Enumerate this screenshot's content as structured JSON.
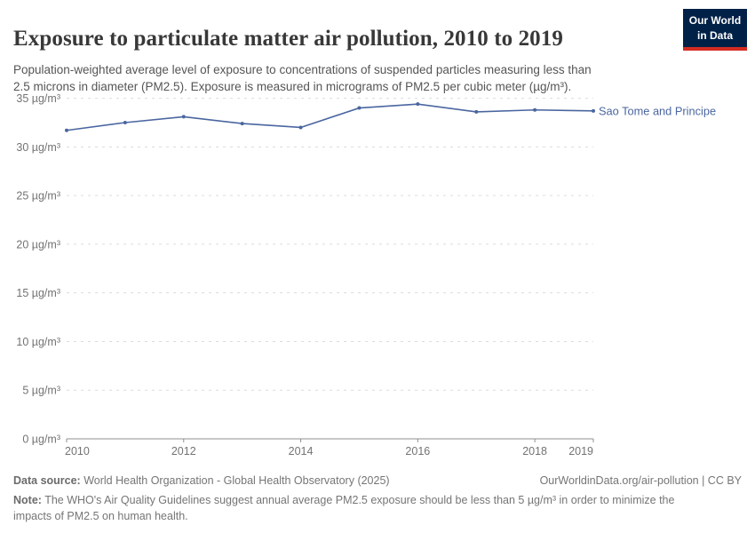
{
  "header": {
    "title": "Exposure to particulate matter air pollution, 2010 to 2019",
    "subtitle_line1": "Population-weighted average level of exposure to concentrations of suspended particles measuring less than",
    "subtitle_line2": "2.5 microns in diameter (PM2.5). Exposure is measured in micrograms of PM2.5 per cubic meter (µg/m³).",
    "logo": {
      "line1": "Our World",
      "line2": "in Data",
      "bg_color": "#002147",
      "bar_color": "#D42B21"
    }
  },
  "chart_data": {
    "type": "line",
    "title": "Exposure to particulate matter air pollution, 2010 to 2019",
    "series": [
      {
        "name": "Sao Tome and Principe",
        "color": "#4A66A0",
        "x": [
          2010,
          2011,
          2012,
          2013,
          2014,
          2015,
          2016,
          2017,
          2018,
          2019
        ],
        "values": [
          31.7,
          32.5,
          33.1,
          32.4,
          32.0,
          34.0,
          34.4,
          33.6,
          33.8,
          33.7
        ]
      }
    ],
    "xlim": [
      2010,
      2019
    ],
    "ylim": [
      0,
      35
    ],
    "xticks": [
      2010,
      2012,
      2014,
      2016,
      2018,
      2019
    ],
    "yticks": [
      0,
      5,
      10,
      15,
      20,
      25,
      30,
      35
    ],
    "y_unit": "µg/m³",
    "grid": "horizontal-dashed",
    "legend": "end-of-line-label",
    "colors": {
      "gridline": "#dcdcdc",
      "axis": "#8f8f8f",
      "tick_text": "#737373"
    }
  },
  "footer": {
    "source_label": "Data source:",
    "source_text": " World Health Organization - Global Health Observatory (2025)",
    "link_text": "OurWorldinData.org/air-pollution | CC BY",
    "note_label": "Note:",
    "note_text1": " The WHO's Air Quality Guidelines suggest annual average PM2.5 exposure should be less than 5 µg/m³ in order to minimize the",
    "note_text2": "impacts of PM2.5 on human health."
  }
}
